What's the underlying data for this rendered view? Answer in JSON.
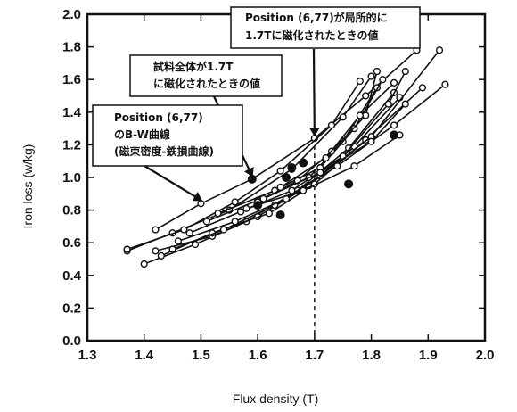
{
  "chart_data": {
    "type": "line",
    "title": "",
    "xlabel": "Flux density (T)",
    "ylabel": "Iron loss (w/kg)",
    "xlim": [
      1.3,
      2.0
    ],
    "ylim": [
      0.0,
      2.0
    ],
    "x_ticks": [
      "1.3",
      "1.4",
      "1.5",
      "1.6",
      "1.7",
      "1.8",
      "1.9",
      "2.0"
    ],
    "y_ticks": [
      "0.0",
      "0.2",
      "0.4",
      "0.6",
      "0.8",
      "1.0",
      "1.2",
      "1.4",
      "1.6",
      "1.8",
      "2.0"
    ],
    "grid": false,
    "reference_line": {
      "x": 1.7,
      "style": "dashed"
    },
    "series": [
      {
        "x": [
          1.42,
          1.5,
          1.59,
          1.7,
          1.79,
          1.88
        ],
        "y": [
          0.68,
          0.84,
          0.99,
          1.24,
          1.5,
          1.78
        ]
      },
      {
        "x": [
          1.37,
          1.45,
          1.55,
          1.66,
          1.75,
          1.8
        ],
        "y": [
          0.55,
          0.66,
          0.8,
          1.05,
          1.37,
          1.62
        ]
      },
      {
        "x": [
          1.37,
          1.47,
          1.56,
          1.64,
          1.73,
          1.78
        ],
        "y": [
          0.56,
          0.68,
          0.85,
          1.04,
          1.32,
          1.59
        ]
      },
      {
        "x": [
          1.4,
          1.49,
          1.58,
          1.67,
          1.76,
          1.84
        ],
        "y": [
          0.47,
          0.59,
          0.73,
          0.92,
          1.18,
          1.52
        ]
      },
      {
        "x": [
          1.42,
          1.52,
          1.6,
          1.69,
          1.77,
          1.85
        ],
        "y": [
          0.55,
          0.64,
          0.76,
          0.95,
          1.19,
          1.49
        ]
      },
      {
        "x": [
          1.43,
          1.52,
          1.62,
          1.7,
          1.79,
          1.89
        ],
        "y": [
          0.52,
          0.66,
          0.78,
          0.96,
          1.23,
          1.55
        ]
      },
      {
        "x": [
          1.45,
          1.54,
          1.63,
          1.71,
          1.8,
          1.92
        ],
        "y": [
          0.56,
          0.68,
          0.83,
          1.01,
          1.25,
          1.78
        ]
      },
      {
        "x": [
          1.46,
          1.56,
          1.65,
          1.74,
          1.84,
          1.93
        ],
        "y": [
          0.61,
          0.73,
          0.87,
          1.07,
          1.32,
          1.57
        ]
      },
      {
        "x": [
          1.48,
          1.57,
          1.66,
          1.75,
          1.83,
          1.86
        ],
        "y": [
          0.66,
          0.79,
          0.92,
          1.13,
          1.45,
          1.65
        ]
      },
      {
        "x": [
          1.51,
          1.6,
          1.69,
          1.75,
          1.81
        ],
        "y": [
          0.73,
          0.86,
          1.0,
          1.22,
          1.55
        ]
      },
      {
        "x": [
          1.53,
          1.63,
          1.71,
          1.77,
          1.82
        ],
        "y": [
          0.78,
          0.92,
          1.06,
          1.3,
          1.6
        ]
      },
      {
        "x": [
          1.6,
          1.67,
          1.73,
          1.79,
          1.81
        ],
        "y": [
          0.85,
          0.98,
          1.16,
          1.38,
          1.65
        ]
      },
      {
        "x": [
          1.58,
          1.68,
          1.77,
          1.85
        ],
        "y": [
          0.81,
          0.92,
          1.07,
          1.26
        ]
      },
      {
        "x": [
          1.61,
          1.71,
          1.8,
          1.86
        ],
        "y": [
          0.87,
          1.03,
          1.22,
          1.45
        ]
      },
      {
        "x": [
          1.64,
          1.72,
          1.78,
          1.84
        ],
        "y": [
          0.94,
          1.12,
          1.38,
          1.58
        ]
      }
    ],
    "filled_markers": [
      {
        "x": 1.59,
        "y": 0.99
      },
      {
        "x": 1.6,
        "y": 0.83
      },
      {
        "x": 1.64,
        "y": 0.77
      },
      {
        "x": 1.65,
        "y": 1.0
      },
      {
        "x": 1.66,
        "y": 1.06
      },
      {
        "x": 1.68,
        "y": 1.09
      },
      {
        "x": 1.76,
        "y": 0.96
      },
      {
        "x": 1.84,
        "y": 1.26
      }
    ],
    "annotations": [
      {
        "id": "position-local",
        "lines": [
          "Position (6,77)が局所的に",
          "1.7Tに磁化されたときの値"
        ],
        "arrow_to": {
          "x": 1.7,
          "y": 1.24
        }
      },
      {
        "id": "whole-sample",
        "lines": [
          "試料全体が1.7T",
          "に磁化されたときの値"
        ],
        "arrow_to": {
          "x": 1.59,
          "y": 0.99
        }
      },
      {
        "id": "bw-curve",
        "lines": [
          "Position (6,77)",
          "のB-W曲線",
          "(磁束密度-鉄損曲線)"
        ],
        "arrow_to": {
          "x": 1.5,
          "y": 0.84
        }
      }
    ]
  }
}
